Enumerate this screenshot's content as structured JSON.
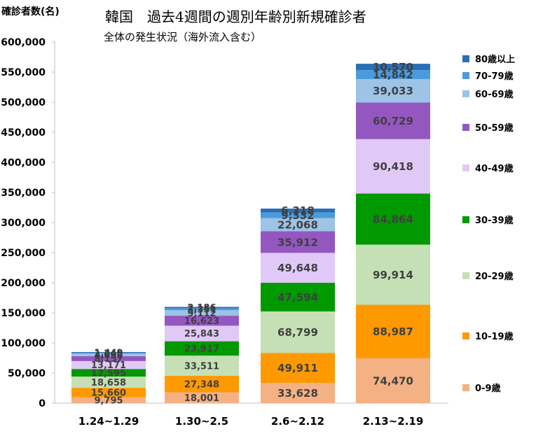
{
  "chart_data": {
    "type": "bar",
    "stacked": true,
    "title": "韓国　過去4週間の週別年齢別新規確診者",
    "subtitle": "全体の発生状況（海外流入含む）",
    "ylabel": "確診者数(名)",
    "ylim": [
      0,
      600000
    ],
    "yticks": [
      0,
      50000,
      100000,
      150000,
      200000,
      250000,
      300000,
      350000,
      400000,
      450000,
      500000,
      550000,
      600000
    ],
    "ytick_labels": [
      "0",
      "50,000",
      "100,000",
      "150,000",
      "200,000",
      "250,000",
      "300,000",
      "350,000",
      "400,000",
      "450,000",
      "500,000",
      "550,000",
      "600,000"
    ],
    "categories": [
      "1.24~1.29",
      "1.30~2.5",
      "2.6~2.12",
      "2.13~2.19"
    ],
    "legend_position": "right",
    "series": [
      {
        "name": "0-9歳",
        "color": "#F4B183",
        "values": [
          9795,
          18001,
          33628,
          74470
        ],
        "labels": [
          "9,795",
          "18,001",
          "33,628",
          "74,470"
        ]
      },
      {
        "name": "10-19歳",
        "color": "#FF9900",
        "values": [
          15660,
          27348,
          49911,
          88987
        ],
        "labels": [
          "15,660",
          "27,348",
          "49,911",
          "88,987"
        ]
      },
      {
        "name": "20-29歳",
        "color": "#C5E0B4",
        "values": [
          18658,
          33511,
          68799,
          99914
        ],
        "labels": [
          "18,658",
          "33,511",
          "68,799",
          "99,914"
        ]
      },
      {
        "name": "30-39歳",
        "color": "#009900",
        "values": [
          12595,
          23917,
          47594,
          84864
        ],
        "labels": [
          "12,595",
          "23,917",
          "47,594",
          "84,864"
        ]
      },
      {
        "name": "40-49歳",
        "color": "#E1C9F7",
        "values": [
          13171,
          25843,
          49648,
          90418
        ],
        "labels": [
          "13,171",
          "25,843",
          "49,648",
          "90,418"
        ]
      },
      {
        "name": "50-59歳",
        "color": "#9457C0",
        "values": [
          8157,
          16623,
          35912,
          60729
        ],
        "labels": [
          "8,157",
          "16,623",
          "35,912",
          "60,729"
        ]
      },
      {
        "name": "60-69歳",
        "color": "#9DC3E6",
        "values": [
          4098,
          9112,
          22068,
          39033
        ],
        "labels": [
          "4,098",
          "9,112",
          "22,068",
          "39,033"
        ]
      },
      {
        "name": "70-79歳",
        "color": "#4A9BDD",
        "values": [
          1246,
          3351,
          9332,
          14842
        ],
        "labels": [
          "1,246",
          "3,351",
          "9,332",
          "14,842"
        ]
      },
      {
        "name": "80歳以上",
        "color": "#2A6EB5",
        "values": [
          1449,
          2186,
          6318,
          10570
        ],
        "labels": [
          "1,449",
          "2,186",
          "6,318",
          "10,570"
        ]
      }
    ]
  }
}
